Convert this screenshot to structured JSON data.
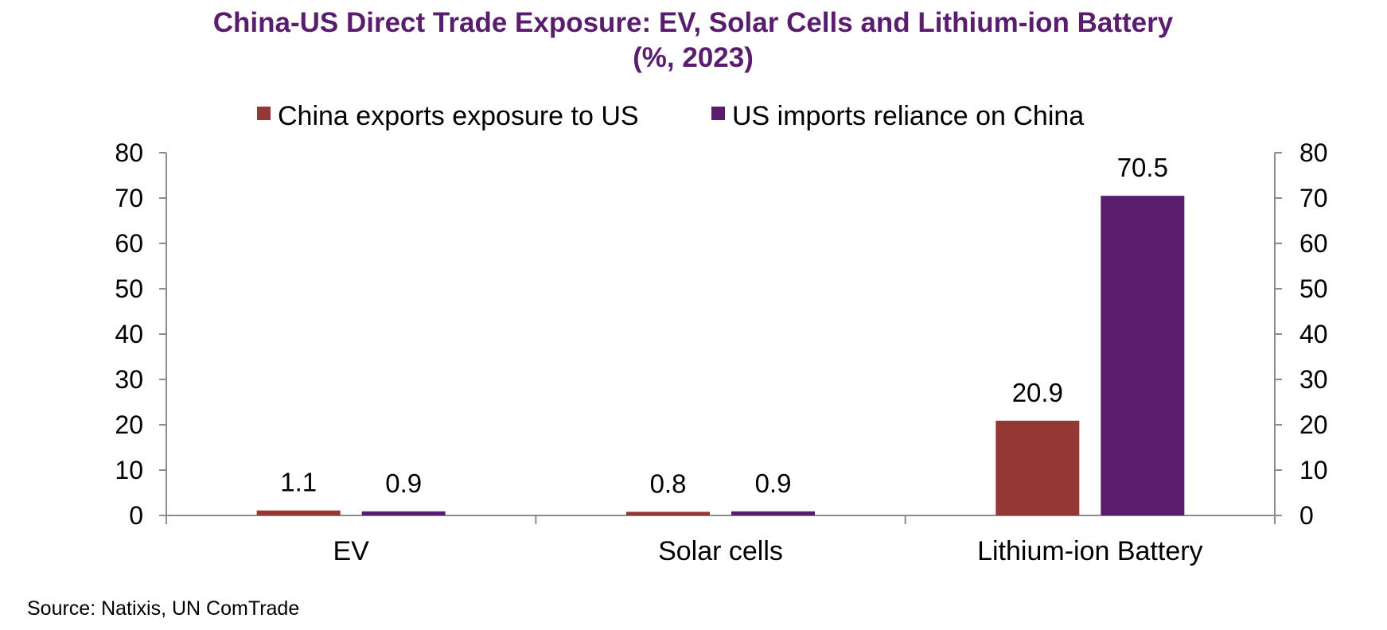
{
  "chart_data": {
    "type": "bar",
    "title": "China-US Direct Trade Exposure: EV, Solar Cells and Lithium-ion Battery",
    "subtitle": "(%, 2023)",
    "categories": [
      "EV",
      "Solar cells",
      "Lithium-ion Battery"
    ],
    "series": [
      {
        "name": "China exports exposure to US",
        "values": [
          1.1,
          0.8,
          20.9
        ],
        "labels": [
          "1.1",
          "0.8",
          "20.9"
        ],
        "color": "#953735"
      },
      {
        "name": "US imports reliance on China",
        "values": [
          0.9,
          0.9,
          70.5
        ],
        "labels": [
          "0.9",
          "0.9",
          "70.5"
        ],
        "color": "#5a1d6e"
      }
    ],
    "ylim": [
      0,
      80
    ],
    "yticks": [
      0,
      10,
      20,
      30,
      40,
      50,
      60,
      70,
      80
    ],
    "y2ticks": [
      0,
      10,
      20,
      30,
      40,
      50,
      60,
      70,
      80
    ],
    "xlabel": "",
    "ylabel": "",
    "grid": false,
    "legend_position": "top",
    "title_color": "#5a1d6e",
    "axis_color": "#8c8c8c"
  },
  "source": "Source: Natixis, UN ComTrade"
}
